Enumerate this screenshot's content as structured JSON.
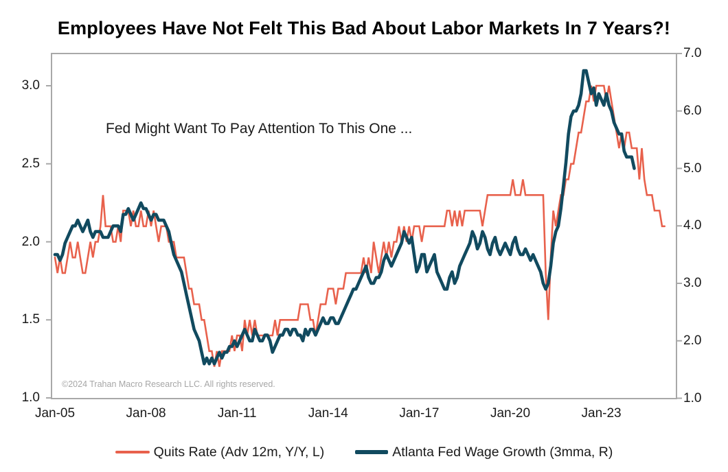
{
  "title": "Employees Have Not Felt This Bad About Labor Markets In 7 Years?!",
  "annotation": "Fed Might Want To Pay Attention To This One ...",
  "copyright": "©2024 Trahan Macro Research LLC. All rights reserved.",
  "colors": {
    "quits": "#E8614C",
    "wage": "#114A5F",
    "axis_frame": "#a8a8a8",
    "text": "#1a1a1a",
    "copyright_text": "#a6a6a6"
  },
  "chart_data": {
    "type": "line",
    "title": "Employees Have Not Felt This Bad About Labor Markets In 7 Years?!",
    "grid": false,
    "legend_position": "bottom",
    "x_axis": {
      "tick_labels": [
        "Jan-05",
        "Jan-08",
        "Jan-11",
        "Jan-14",
        "Jan-17",
        "Jan-20",
        "Jan-23"
      ],
      "tick_years": [
        2005,
        2008,
        2011,
        2014,
        2017,
        2020,
        2023
      ]
    },
    "left_axis": {
      "tick_labels": [
        "3.0",
        "2.5",
        "2.0",
        "1.5",
        "1.0"
      ],
      "tick_values": [
        3.0,
        2.5,
        2.0,
        1.5,
        1.0
      ],
      "range": [
        1.0,
        3.21
      ]
    },
    "right_axis": {
      "tick_labels": [
        "7.0",
        "6.0",
        "5.0",
        "4.0",
        "3.0",
        "2.0",
        "1.0"
      ],
      "tick_values": [
        7.0,
        6.0,
        5.0,
        4.0,
        3.0,
        2.0,
        1.0
      ],
      "range": [
        1.0,
        7.0
      ]
    },
    "series": [
      {
        "name": "Quits Rate (Adv 12m, Y/Y, L)",
        "axis": "left",
        "color_key": "quits",
        "frequency": "monthly",
        "start": "2005-01",
        "end": "2025-02",
        "values": [
          1.9,
          1.8,
          1.9,
          1.8,
          1.8,
          1.9,
          2.0,
          1.9,
          1.9,
          2.0,
          1.9,
          1.8,
          1.8,
          1.9,
          2.0,
          1.9,
          2.0,
          2.0,
          2.1,
          2.3,
          2.1,
          2.1,
          2.1,
          2.0,
          2.0,
          2.1,
          2.0,
          2.2,
          2.2,
          2.2,
          2.1,
          2.2,
          2.1,
          2.1,
          2.2,
          2.1,
          2.1,
          2.2,
          2.1,
          2.2,
          2.1,
          2.0,
          2.1,
          2.1,
          2.1,
          2.0,
          2.0,
          2.0,
          1.9,
          1.9,
          1.9,
          1.9,
          1.8,
          1.7,
          1.7,
          1.6,
          1.6,
          1.6,
          1.5,
          1.5,
          1.4,
          1.3,
          1.3,
          1.2,
          1.3,
          1.2,
          1.3,
          1.3,
          1.3,
          1.3,
          1.4,
          1.3,
          1.4,
          1.4,
          1.3,
          1.5,
          1.4,
          1.5,
          1.4,
          1.5,
          1.4,
          1.4,
          1.4,
          1.4,
          1.4,
          1.4,
          1.4,
          1.5,
          1.4,
          1.5,
          1.5,
          1.5,
          1.5,
          1.5,
          1.5,
          1.5,
          1.5,
          1.6,
          1.6,
          1.6,
          1.6,
          1.5,
          1.5,
          1.4,
          1.5,
          1.6,
          1.6,
          1.6,
          1.7,
          1.7,
          1.7,
          1.6,
          1.7,
          1.7,
          1.7,
          1.8,
          1.8,
          1.8,
          1.8,
          1.8,
          1.8,
          1.8,
          1.9,
          1.8,
          1.9,
          1.8,
          2.0,
          1.9,
          1.8,
          1.9,
          2.0,
          1.9,
          2.0,
          1.9,
          2.0,
          2.0,
          2.1,
          2.0,
          2.1,
          2.0,
          2.1,
          2.0,
          2.1,
          2.1,
          2.1,
          2.0,
          2.1,
          2.1,
          2.1,
          2.1,
          2.1,
          2.1,
          2.1,
          2.1,
          2.1,
          2.2,
          2.2,
          2.1,
          2.2,
          2.1,
          2.2,
          2.1,
          2.2,
          2.2,
          2.2,
          2.2,
          2.2,
          2.2,
          2.2,
          2.1,
          2.2,
          2.3,
          2.3,
          2.3,
          2.3,
          2.3,
          2.3,
          2.3,
          2.3,
          2.3,
          2.3,
          2.4,
          2.3,
          2.3,
          2.3,
          2.4,
          2.3,
          2.3,
          2.3,
          2.3,
          2.3,
          2.3,
          2.3,
          2.3,
          1.8,
          1.5,
          1.9,
          2.2,
          2.1,
          2.2,
          2.3,
          2.3,
          2.4,
          2.4,
          2.5,
          2.5,
          2.6,
          2.7,
          2.7,
          2.8,
          2.9,
          2.9,
          3.0,
          2.9,
          3.0,
          3.0,
          3.0,
          3.0,
          2.9,
          3.0,
          2.9,
          2.8,
          2.7,
          2.6,
          2.7,
          2.6,
          2.7,
          2.7,
          2.6,
          2.6,
          2.6,
          2.4,
          2.6,
          2.4,
          2.3,
          2.3,
          2.3,
          2.2,
          2.2,
          2.2,
          2.1,
          2.1
        ]
      },
      {
        "name": "Atlanta Fed Wage Growth (3mma, R)",
        "axis": "right",
        "color_key": "wage",
        "frequency": "monthly",
        "start": "2005-01",
        "end": "2024-02",
        "values": [
          3.5,
          3.5,
          3.4,
          3.5,
          3.7,
          3.8,
          3.9,
          4.0,
          4.0,
          4.1,
          4.0,
          3.9,
          4.0,
          4.1,
          3.9,
          3.8,
          3.9,
          3.9,
          3.9,
          3.8,
          3.8,
          3.8,
          3.9,
          4.0,
          4.0,
          4.0,
          3.9,
          4.2,
          4.2,
          4.3,
          4.2,
          4.1,
          4.2,
          4.3,
          4.4,
          4.3,
          4.3,
          4.2,
          4.1,
          4.2,
          4.2,
          4.1,
          4.1,
          4.1,
          4.0,
          3.9,
          3.7,
          3.5,
          3.4,
          3.3,
          3.2,
          3.0,
          2.8,
          2.6,
          2.4,
          2.2,
          2.1,
          2.0,
          1.8,
          1.6,
          1.7,
          1.6,
          1.7,
          1.6,
          1.7,
          1.8,
          1.7,
          1.8,
          1.8,
          1.9,
          1.9,
          2.0,
          1.9,
          2.0,
          2.1,
          2.2,
          2.1,
          2.0,
          2.0,
          2.2,
          2.1,
          2.0,
          2.0,
          2.1,
          2.1,
          2.0,
          1.8,
          1.9,
          2.0,
          2.1,
          2.1,
          2.2,
          2.2,
          2.1,
          2.2,
          2.2,
          2.1,
          2.1,
          2.0,
          2.2,
          2.1,
          2.2,
          2.2,
          2.1,
          2.2,
          2.3,
          2.4,
          2.3,
          2.3,
          2.4,
          2.4,
          2.3,
          2.3,
          2.4,
          2.5,
          2.6,
          2.7,
          2.8,
          2.9,
          2.9,
          3.0,
          3.1,
          3.2,
          3.3,
          3.1,
          3.0,
          3.0,
          3.1,
          3.1,
          3.2,
          3.4,
          3.5,
          3.4,
          3.3,
          3.4,
          3.5,
          3.6,
          3.7,
          3.9,
          3.8,
          3.7,
          3.8,
          3.5,
          3.2,
          3.3,
          3.5,
          3.5,
          3.2,
          3.3,
          3.4,
          3.5,
          3.2,
          3.1,
          3.0,
          2.9,
          2.9,
          3.1,
          3.2,
          3.0,
          3.1,
          3.3,
          3.4,
          3.5,
          3.6,
          3.7,
          3.9,
          3.8,
          3.6,
          3.7,
          3.9,
          3.8,
          3.6,
          3.5,
          3.7,
          3.8,
          3.6,
          3.5,
          3.6,
          3.7,
          3.6,
          3.5,
          3.7,
          3.8,
          3.6,
          3.5,
          3.5,
          3.6,
          3.5,
          3.4,
          3.5,
          3.4,
          3.3,
          3.2,
          3.0,
          2.9,
          3.0,
          3.3,
          3.7,
          3.9,
          4.0,
          4.3,
          4.7,
          5.1,
          5.6,
          5.9,
          6.0,
          6.0,
          6.1,
          6.3,
          6.7,
          6.7,
          6.5,
          6.3,
          6.4,
          6.1,
          6.3,
          6.2,
          6.1,
          6.3,
          6.1,
          6.0,
          5.8,
          5.7,
          5.6,
          5.6,
          5.3,
          5.2,
          5.2,
          5.2,
          5.0
        ]
      }
    ]
  }
}
